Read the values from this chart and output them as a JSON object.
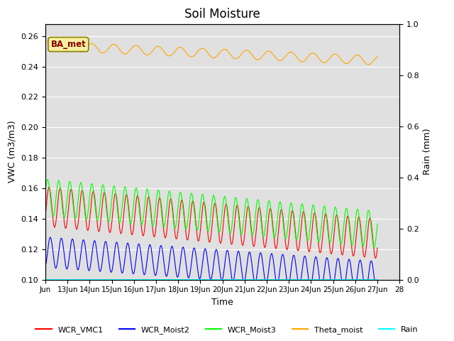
{
  "title": "Soil Moisture",
  "xlabel": "Time",
  "ylabel_left": "VWC (m3/m3)",
  "ylabel_right": "Rain (mm)",
  "ylim_left": [
    0.1,
    0.268
  ],
  "ylim_right": [
    0.0,
    1.0
  ],
  "xtick_labels": [
    "Jun",
    "13Jun",
    "14Jun",
    "15Jun",
    "16Jun",
    "17Jun",
    "18Jun",
    "19Jun",
    "20Jun",
    "21Jun",
    "22Jun",
    "23Jun",
    "24Jun",
    "25Jun",
    "26Jun",
    "27Jun",
    "28"
  ],
  "bg_color": "#e0e0e0",
  "legend_labels": [
    "WCR_VMC1",
    "WCR_Moist2",
    "WCR_Moist3",
    "Theta_moist",
    "Rain"
  ],
  "legend_colors": [
    "red",
    "blue",
    "lime",
    "orange",
    "cyan"
  ],
  "annotation_text": "BA_met",
  "title_fontsize": 12,
  "axis_fontsize": 9
}
